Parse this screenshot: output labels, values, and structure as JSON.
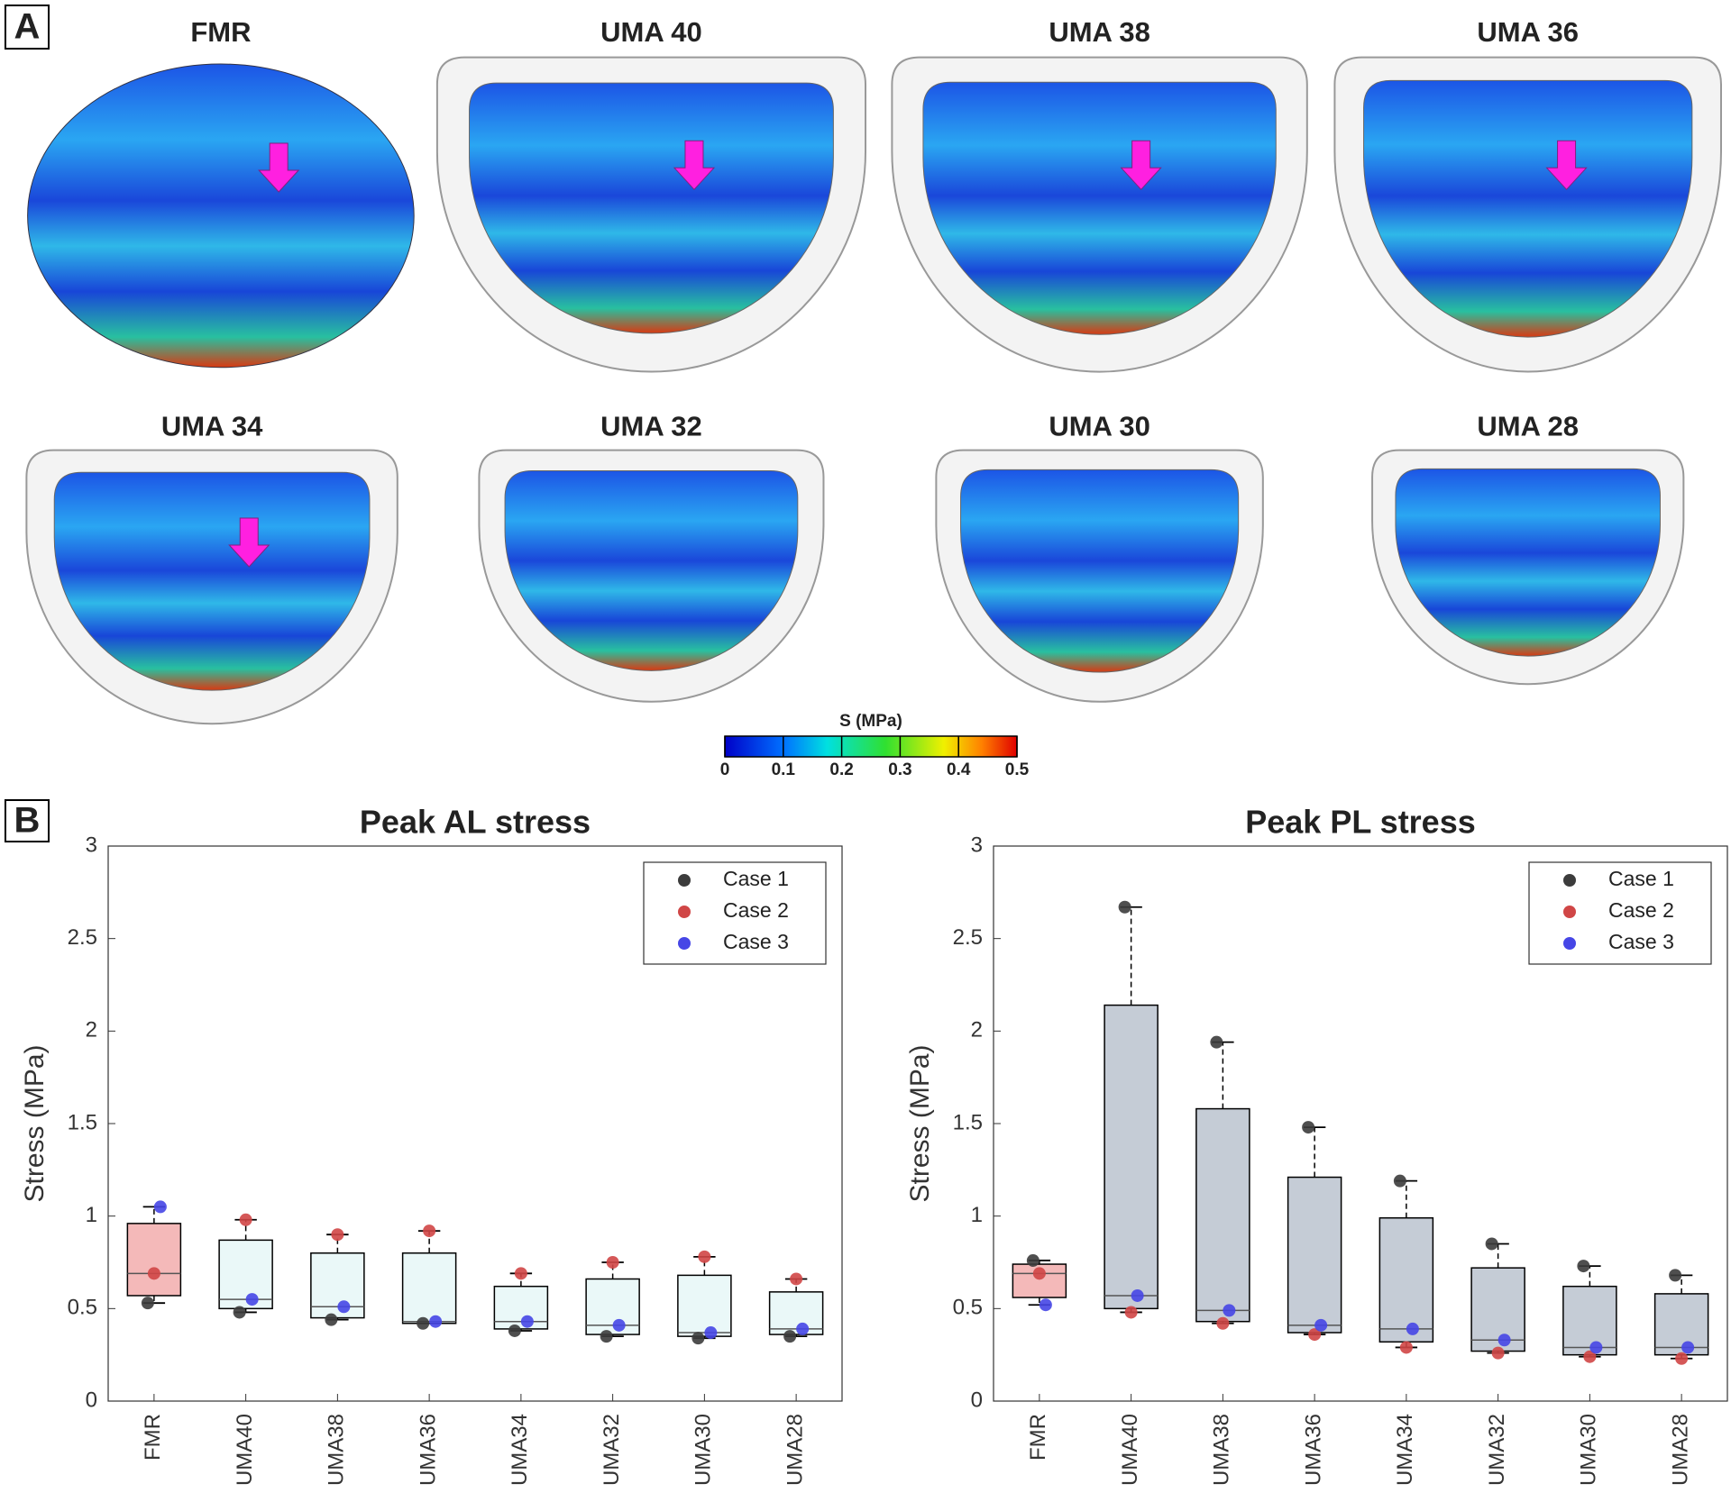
{
  "panel_labels": [
    "A",
    "B"
  ],
  "stress_maps": {
    "titles": [
      "FMR",
      "UMA 40",
      "UMA 38",
      "UMA 36",
      "UMA 34",
      "UMA 32",
      "UMA 30",
      "UMA 28"
    ]
  },
  "colorbar": {
    "label": "S (MPa)",
    "lim": [
      0,
      0.5
    ],
    "ticks": [
      0,
      0.1,
      0.2,
      0.3,
      0.4,
      0.5
    ]
  },
  "chart_data": [
    {
      "type": "box",
      "title": "Peak AL stress",
      "y_label": "Stress (MPa)",
      "categories": [
        "FMR",
        "UMA40",
        "UMA38",
        "UMA36",
        "UMA34",
        "UMA32",
        "UMA30",
        "UMA28"
      ],
      "ylim": [
        0,
        3
      ],
      "yticks": [
        0,
        0.5,
        1,
        1.5,
        2,
        2.5,
        3
      ],
      "legend_position": "upper right",
      "box_colors": [
        "#f4b9b9",
        "#eaf8f8",
        "#eaf8f8",
        "#eaf8f8",
        "#eaf8f8",
        "#eaf8f8",
        "#eaf8f8",
        "#eaf8f8"
      ],
      "box": {
        "whisker_low": [
          0.53,
          0.48,
          0.44,
          0.42,
          0.38,
          0.35,
          0.34,
          0.35
        ],
        "q1": [
          0.57,
          0.5,
          0.45,
          0.42,
          0.39,
          0.36,
          0.35,
          0.36
        ],
        "median": [
          0.69,
          0.55,
          0.51,
          0.43,
          0.43,
          0.41,
          0.37,
          0.39
        ],
        "q3": [
          0.96,
          0.87,
          0.8,
          0.8,
          0.62,
          0.66,
          0.68,
          0.59
        ],
        "whisker_high": [
          1.05,
          0.98,
          0.9,
          0.92,
          0.69,
          0.75,
          0.78,
          0.66
        ]
      },
      "series": [
        {
          "name": "Case 1",
          "color": "#3c3c3c",
          "values": [
            0.53,
            0.48,
            0.44,
            0.42,
            0.38,
            0.35,
            0.34,
            0.35
          ]
        },
        {
          "name": "Case 2",
          "color": "#d04646",
          "values": [
            0.69,
            0.98,
            0.9,
            0.92,
            0.69,
            0.75,
            0.78,
            0.66
          ]
        },
        {
          "name": "Case 3",
          "color": "#4646e6",
          "values": [
            1.05,
            0.55,
            0.51,
            0.43,
            0.43,
            0.41,
            0.37,
            0.39
          ]
        }
      ]
    },
    {
      "type": "box",
      "title": "Peak PL stress",
      "y_label": "Stress (MPa)",
      "categories": [
        "FMR",
        "UMA40",
        "UMA38",
        "UMA36",
        "UMA34",
        "UMA32",
        "UMA30",
        "UMA28"
      ],
      "ylim": [
        0,
        3
      ],
      "yticks": [
        0,
        0.5,
        1,
        1.5,
        2,
        2.5,
        3
      ],
      "legend_position": "upper right",
      "box_colors": [
        "#f4b9b9",
        "#c5ccd6",
        "#c5ccd6",
        "#c5ccd6",
        "#c5ccd6",
        "#c5ccd6",
        "#c5ccd6",
        "#c5ccd6"
      ],
      "box": {
        "whisker_low": [
          0.52,
          0.48,
          0.42,
          0.36,
          0.29,
          0.26,
          0.24,
          0.23
        ],
        "q1": [
          0.56,
          0.5,
          0.43,
          0.37,
          0.32,
          0.27,
          0.25,
          0.25
        ],
        "median": [
          0.69,
          0.57,
          0.49,
          0.41,
          0.39,
          0.33,
          0.29,
          0.29
        ],
        "q3": [
          0.74,
          2.14,
          1.58,
          1.21,
          0.99,
          0.72,
          0.62,
          0.58
        ],
        "whisker_high": [
          0.76,
          2.67,
          1.94,
          1.48,
          1.19,
          0.85,
          0.73,
          0.68
        ]
      },
      "series": [
        {
          "name": "Case 1",
          "color": "#3c3c3c",
          "values": [
            0.76,
            2.67,
            1.94,
            1.48,
            1.19,
            0.85,
            0.73,
            0.68
          ]
        },
        {
          "name": "Case 2",
          "color": "#d04646",
          "values": [
            0.69,
            0.48,
            0.42,
            0.36,
            0.29,
            0.26,
            0.24,
            0.23
          ]
        },
        {
          "name": "Case 3",
          "color": "#4646e6",
          "values": [
            0.52,
            0.57,
            0.49,
            0.41,
            0.39,
            0.33,
            0.29,
            0.29
          ]
        }
      ]
    }
  ]
}
